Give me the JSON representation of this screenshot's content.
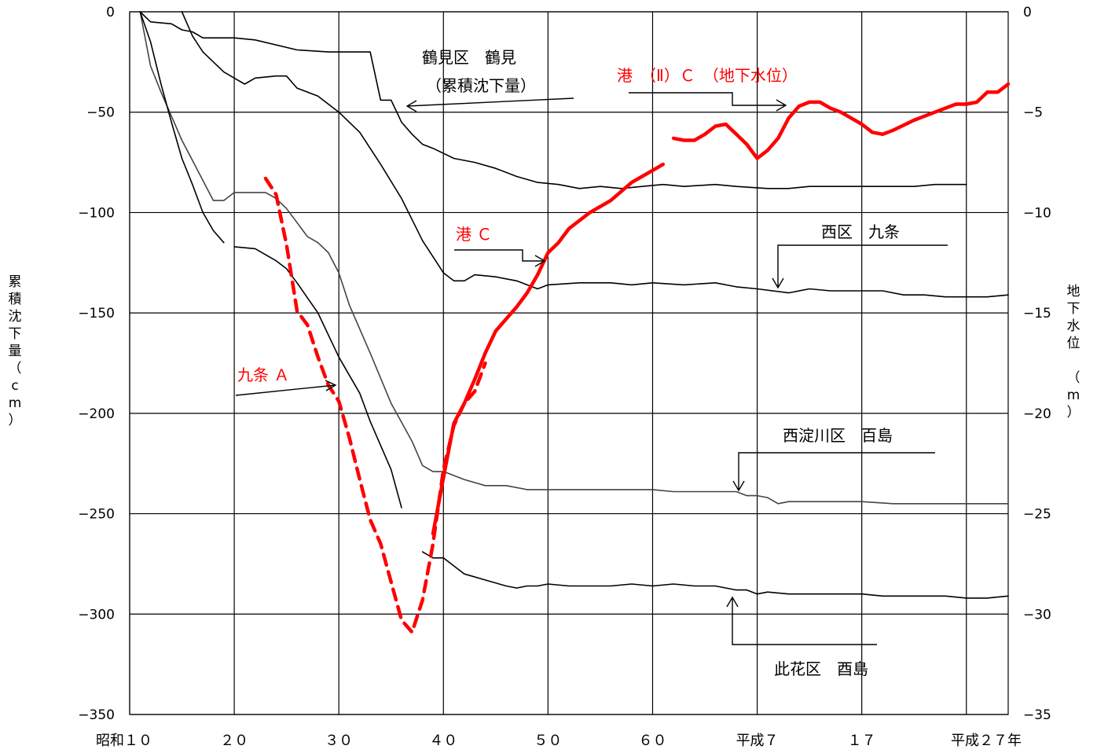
{
  "chart_data": {
    "type": "line",
    "xlabels": [
      "昭和１０",
      "２０",
      "３０",
      "４０",
      "５０",
      "６０",
      "平成７",
      "１７",
      "平成２７年"
    ],
    "xlim": [
      10,
      94
    ],
    "y_left": {
      "label": "累積沈下量（cm）",
      "range": [
        -350,
        0
      ],
      "ticks": [
        0,
        -50,
        -100,
        -150,
        -200,
        -250,
        -300,
        -350
      ],
      "tick_labels": [
        "0",
        "−50",
        "−100",
        "−150",
        "−200",
        "−250",
        "−300",
        "−350"
      ]
    },
    "y_right": {
      "label": "地下水位 （m）",
      "range": [
        -35,
        0
      ],
      "ticks": [
        0,
        -5,
        -10,
        -15,
        -20,
        -25,
        -30,
        -35
      ],
      "tick_labels": [
        "0",
        "−5",
        "−10",
        "−15",
        "−20",
        "−25",
        "−30",
        "−35"
      ]
    },
    "grid": true,
    "series": [
      {
        "name": "鶴見区　鶴見",
        "note": "（累積沈下量）",
        "axis": "left",
        "color": "#000000",
        "style": "solid",
        "points": [
          [
            11,
            0
          ],
          [
            12,
            -5
          ],
          [
            14,
            -6
          ],
          [
            15,
            -9
          ],
          [
            16,
            -10
          ],
          [
            17,
            -13
          ],
          [
            20,
            -13
          ],
          [
            22,
            -14
          ],
          [
            26,
            -19
          ],
          [
            29,
            -20
          ],
          [
            33,
            -20
          ],
          [
            34,
            -44
          ],
          [
            35,
            -44
          ],
          [
            36,
            -55
          ],
          [
            37,
            -61
          ],
          [
            38,
            -66
          ],
          [
            39,
            -68
          ],
          [
            41,
            -73
          ],
          [
            43,
            -75
          ],
          [
            45,
            -78
          ],
          [
            47,
            -82
          ],
          [
            49,
            -85
          ],
          [
            51,
            -86
          ],
          [
            53,
            -88
          ],
          [
            55,
            -87
          ],
          [
            57,
            -88
          ],
          [
            59,
            -87
          ],
          [
            61,
            -86
          ],
          [
            63,
            -87
          ],
          [
            66,
            -86
          ],
          [
            68,
            -87
          ],
          [
            71,
            -88
          ],
          [
            73,
            -88
          ],
          [
            75,
            -87
          ],
          [
            78,
            -87
          ],
          [
            80,
            -87
          ],
          [
            82,
            -87
          ],
          [
            85,
            -87
          ],
          [
            87,
            -86
          ],
          [
            90,
            -86
          ]
        ]
      },
      {
        "name": "西区　九条",
        "axis": "left",
        "color": "#000000",
        "style": "solid",
        "points": [
          [
            15,
            0
          ],
          [
            16,
            -12
          ],
          [
            17,
            -20
          ],
          [
            19,
            -30
          ],
          [
            20,
            -33
          ],
          [
            21,
            -36
          ],
          [
            22,
            -33
          ],
          [
            24,
            -32
          ],
          [
            25,
            -32
          ],
          [
            26,
            -38
          ],
          [
            28,
            -42
          ],
          [
            30,
            -50
          ],
          [
            32,
            -60
          ],
          [
            34,
            -76
          ],
          [
            36,
            -93
          ],
          [
            38,
            -114
          ],
          [
            40,
            -130
          ],
          [
            41,
            -134
          ],
          [
            42,
            -134
          ],
          [
            43,
            -131
          ],
          [
            45,
            -132
          ],
          [
            47,
            -134
          ],
          [
            49,
            -138
          ],
          [
            50,
            -136
          ],
          [
            53,
            -135
          ],
          [
            56,
            -135
          ],
          [
            58,
            -136
          ],
          [
            60,
            -135
          ],
          [
            63,
            -136
          ],
          [
            66,
            -135
          ],
          [
            68,
            -137
          ],
          [
            70,
            -138
          ],
          [
            73,
            -140
          ],
          [
            75,
            -138
          ],
          [
            77,
            -139
          ],
          [
            80,
            -139
          ],
          [
            82,
            -139
          ],
          [
            84,
            -141
          ],
          [
            86,
            -141
          ],
          [
            88,
            -142
          ],
          [
            90,
            -142
          ],
          [
            92,
            -142
          ],
          [
            94,
            -141
          ]
        ]
      },
      {
        "name": "西淀川区　百島",
        "axis": "left",
        "color": "#444444",
        "style": "solid",
        "points": [
          [
            11,
            0
          ],
          [
            12,
            -27
          ],
          [
            13,
            -40
          ],
          [
            14,
            -52
          ],
          [
            15,
            -64
          ],
          [
            16,
            -74
          ],
          [
            17,
            -84
          ],
          [
            18,
            -94
          ],
          [
            19,
            -94
          ],
          [
            20,
            -90
          ],
          [
            22,
            -90
          ],
          [
            23,
            -90
          ],
          [
            24,
            -93
          ],
          [
            25,
            -98
          ],
          [
            26,
            -105
          ],
          [
            27,
            -112
          ],
          [
            28,
            -115
          ],
          [
            29,
            -120
          ],
          [
            30,
            -130
          ],
          [
            31,
            -146
          ],
          [
            33,
            -170
          ],
          [
            35,
            -195
          ],
          [
            37,
            -214
          ],
          [
            38,
            -226
          ],
          [
            39,
            -229
          ],
          [
            40,
            -229
          ],
          [
            42,
            -233
          ],
          [
            44,
            -236
          ],
          [
            46,
            -236
          ],
          [
            48,
            -238
          ],
          [
            50,
            -238
          ],
          [
            52,
            -238
          ],
          [
            54,
            -238
          ],
          [
            56,
            -238
          ],
          [
            58,
            -238
          ],
          [
            60,
            -238
          ],
          [
            62,
            -239
          ],
          [
            64,
            -239
          ],
          [
            66,
            -239
          ],
          [
            68,
            -239
          ],
          [
            69,
            -241
          ],
          [
            70,
            -241
          ],
          [
            71,
            -242
          ],
          [
            72,
            -245
          ],
          [
            73,
            -244
          ],
          [
            75,
            -244
          ],
          [
            78,
            -244
          ],
          [
            80,
            -244
          ],
          [
            83,
            -245
          ],
          [
            85,
            -245
          ],
          [
            87,
            -245
          ],
          [
            89,
            -245
          ],
          [
            91,
            -245
          ],
          [
            94,
            -245
          ]
        ]
      },
      {
        "name": "此花区　酉島",
        "axis": "left",
        "color": "#000000",
        "style": "solid",
        "points": [
          [
            11,
            0
          ],
          [
            12,
            -15
          ],
          [
            13,
            -36
          ],
          [
            14,
            -55
          ],
          [
            15,
            -73
          ],
          [
            16,
            -86
          ],
          [
            17,
            -100
          ],
          [
            18,
            -109
          ],
          [
            19,
            -115
          ]
        ]
      },
      {
        "name": "此花区　酉島",
        "axis": "left",
        "color": "#000000",
        "style": "solid",
        "points": [
          [
            20,
            -117
          ],
          [
            22,
            -118
          ],
          [
            23,
            -121
          ],
          [
            24,
            -124
          ],
          [
            25,
            -128
          ],
          [
            26,
            -135
          ],
          [
            28,
            -150
          ],
          [
            30,
            -172
          ],
          [
            32,
            -190
          ],
          [
            33,
            -204
          ],
          [
            35,
            -228
          ],
          [
            36,
            -247
          ]
        ]
      },
      {
        "name": "此花区　酉島",
        "axis": "left",
        "color": "#000000",
        "style": "solid",
        "points": [
          [
            38,
            -269
          ],
          [
            39,
            -272
          ],
          [
            40,
            -272
          ],
          [
            41,
            -276
          ],
          [
            42,
            -280
          ],
          [
            44,
            -283
          ],
          [
            46,
            -286
          ],
          [
            47,
            -287
          ],
          [
            48,
            -286
          ],
          [
            49,
            -286
          ],
          [
            50,
            -285
          ],
          [
            52,
            -286
          ],
          [
            54,
            -286
          ],
          [
            56,
            -286
          ],
          [
            58,
            -285
          ],
          [
            60,
            -286
          ],
          [
            62,
            -285
          ],
          [
            64,
            -286
          ],
          [
            66,
            -286
          ],
          [
            68,
            -288
          ],
          [
            69,
            -288
          ],
          [
            70,
            -290
          ],
          [
            71,
            -289
          ],
          [
            73,
            -290
          ],
          [
            75,
            -290
          ],
          [
            78,
            -290
          ],
          [
            80,
            -290
          ],
          [
            82,
            -291
          ],
          [
            85,
            -291
          ],
          [
            88,
            -291
          ],
          [
            90,
            -292
          ],
          [
            92,
            -292
          ],
          [
            94,
            -291
          ]
        ]
      },
      {
        "name": "九条 A",
        "axis": "right",
        "color": "#ff0000",
        "style": "dashed",
        "points": [
          [
            23,
            -8.3
          ],
          [
            24,
            -9.1
          ],
          [
            25,
            -11.6
          ],
          [
            26,
            -14.9
          ],
          [
            27,
            -15.6
          ],
          [
            28,
            -17.2
          ],
          [
            29,
            -18.6
          ],
          [
            30,
            -19.4
          ],
          [
            31,
            -21.2
          ],
          [
            32,
            -23.3
          ],
          [
            33,
            -25.3
          ],
          [
            34,
            -26.5
          ],
          [
            35,
            -28.4
          ],
          [
            36,
            -30.3
          ],
          [
            37,
            -30.9
          ],
          [
            38,
            -29.3
          ],
          [
            39,
            -26.5
          ],
          [
            40,
            -22.8
          ],
          [
            41,
            -20.6
          ],
          [
            42,
            -19.5
          ],
          [
            43,
            -18.9
          ],
          [
            44,
            -17.5
          ]
        ]
      },
      {
        "name": "港 C",
        "axis": "right",
        "color": "#ff0000",
        "style": "solid",
        "points": [
          [
            39,
            -26.0
          ],
          [
            40,
            -23.2
          ],
          [
            41,
            -20.5
          ],
          [
            42,
            -19.5
          ],
          [
            43,
            -18.3
          ],
          [
            44,
            -17.0
          ],
          [
            45,
            -15.9
          ],
          [
            46,
            -15.3
          ],
          [
            47,
            -14.7
          ],
          [
            48,
            -14.0
          ],
          [
            49,
            -13.1
          ],
          [
            50,
            -12.0
          ],
          [
            51,
            -11.5
          ],
          [
            52,
            -10.8
          ],
          [
            54,
            -10.0
          ],
          [
            56,
            -9.4
          ],
          [
            58,
            -8.5
          ],
          [
            60,
            -7.9
          ],
          [
            61,
            -7.6
          ]
        ]
      },
      {
        "name": "港（Ⅱ）C（地下水位）",
        "axis": "right",
        "color": "#ff0000",
        "style": "solid",
        "points": [
          [
            62,
            -6.3
          ],
          [
            63,
            -6.4
          ],
          [
            64,
            -6.4
          ],
          [
            65,
            -6.1
          ],
          [
            66,
            -5.7
          ],
          [
            67,
            -5.6
          ],
          [
            68,
            -6.1
          ],
          [
            69,
            -6.6
          ],
          [
            70,
            -7.3
          ],
          [
            71,
            -6.9
          ],
          [
            72,
            -6.3
          ],
          [
            73,
            -5.3
          ],
          [
            74,
            -4.7
          ],
          [
            75,
            -4.5
          ],
          [
            76,
            -4.5
          ],
          [
            77,
            -4.8
          ],
          [
            78,
            -5.0
          ],
          [
            80,
            -5.6
          ],
          [
            81,
            -6.0
          ],
          [
            82,
            -6.1
          ],
          [
            83,
            -5.9
          ],
          [
            85,
            -5.4
          ],
          [
            87,
            -5.0
          ],
          [
            89,
            -4.6
          ],
          [
            90,
            -4.6
          ],
          [
            91,
            -4.5
          ],
          [
            92,
            -4.0
          ],
          [
            93,
            -4.0
          ],
          [
            94,
            -3.6
          ]
        ]
      }
    ],
    "annotations": [
      {
        "text": "鶴見区　鶴見",
        "color": "#000000"
      },
      {
        "text": "（累積沈下量）",
        "color": "#000000"
      },
      {
        "text": "港　（Ⅱ）Ｃ　（地下水位）",
        "color": "#ff0000"
      },
      {
        "text": "港 Ｃ",
        "color": "#ff0000"
      },
      {
        "text": "西区　九条",
        "color": "#000000"
      },
      {
        "text": "九条 Ａ",
        "color": "#ff0000"
      },
      {
        "text": "西淀川区　百島",
        "color": "#000000"
      },
      {
        "text": "此花区　酉島",
        "color": "#000000"
      }
    ]
  }
}
